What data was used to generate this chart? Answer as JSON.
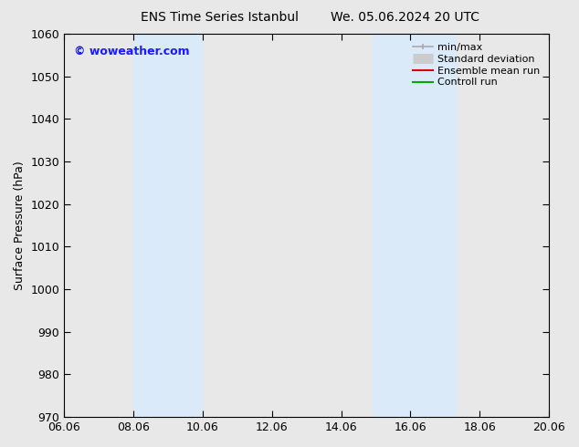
{
  "title_left": "ENS Time Series Istanbul",
  "title_right": "We. 05.06.2024 20 UTC",
  "ylabel": "Surface Pressure (hPa)",
  "ylim": [
    970,
    1060
  ],
  "ytick_step": 10,
  "xlim_dates": [
    "06.06",
    "20.06"
  ],
  "xtick_labels": [
    "06.06",
    "08.06",
    "10.06",
    "12.06",
    "14.06",
    "16.06",
    "18.06",
    "20.06"
  ],
  "xtick_positions": [
    0,
    2,
    4,
    6,
    8,
    10,
    12,
    14
  ],
  "xlim": [
    0,
    14
  ],
  "shaded_bands": [
    {
      "x_start": 2.0,
      "x_end": 3.5,
      "color": "#daeaf8"
    },
    {
      "x_start": 3.5,
      "x_end": 4.0,
      "color": "#daeaf8"
    },
    {
      "x_start": 8.9,
      "x_end": 10.0,
      "color": "#daeaf8"
    },
    {
      "x_start": 10.0,
      "x_end": 11.3,
      "color": "#daeaf8"
    }
  ],
  "watermark_text": "© woweather.com",
  "watermark_color": "#1a1aff",
  "background_color": "#e8e8e8",
  "plot_bg_color": "#e8e8e8",
  "legend_entries": [
    {
      "label": "min/max",
      "color": "#aaaaaa",
      "lw": 1.2,
      "style": "minmax"
    },
    {
      "label": "Standard deviation",
      "color": "#cccccc",
      "lw": 8,
      "style": "stddev"
    },
    {
      "label": "Ensemble mean run",
      "color": "#dd0000",
      "lw": 1.5,
      "style": "line"
    },
    {
      "label": "Controll run",
      "color": "#00aa00",
      "lw": 1.5,
      "style": "line"
    }
  ],
  "title_fontsize": 10,
  "axis_fontsize": 9,
  "tick_fontsize": 9,
  "legend_fontsize": 8
}
